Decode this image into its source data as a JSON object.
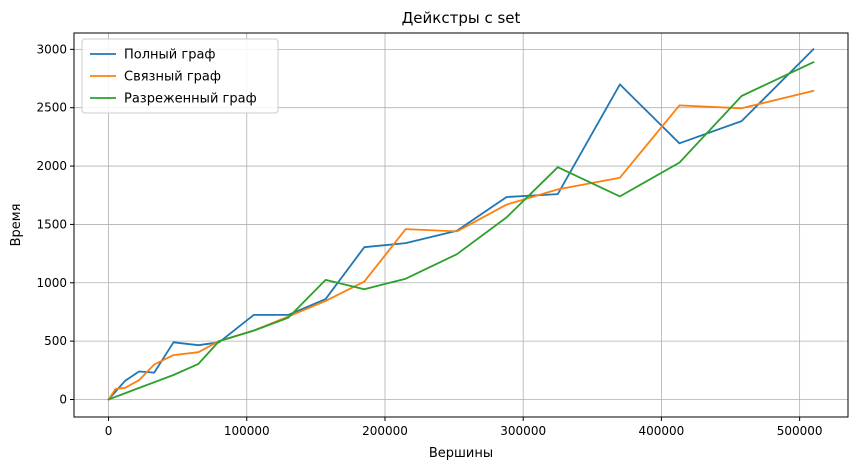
{
  "chart_data": {
    "type": "line",
    "title": "Дейкстры с set",
    "xlabel": "Вершины",
    "ylabel": "Время",
    "xlim": [
      -25000,
      535000
    ],
    "ylim": [
      -150,
      3140
    ],
    "xticks": [
      0,
      100000,
      200000,
      300000,
      400000,
      500000
    ],
    "yticks": [
      0,
      500,
      1000,
      1500,
      2000,
      2500,
      3000
    ],
    "grid": true,
    "legend_position": "top-left",
    "series": [
      {
        "name": "Полный граф",
        "color": "#1f77b4",
        "points": [
          [
            0,
            0
          ],
          [
            12000,
            160
          ],
          [
            22000,
            240
          ],
          [
            33000,
            230
          ],
          [
            47000,
            490
          ],
          [
            65000,
            465
          ],
          [
            80000,
            490
          ],
          [
            105000,
            725
          ],
          [
            130000,
            725
          ],
          [
            157000,
            860
          ],
          [
            185000,
            1305
          ],
          [
            215000,
            1340
          ],
          [
            252000,
            1445
          ],
          [
            288000,
            1735
          ],
          [
            325000,
            1760
          ],
          [
            370000,
            2700
          ],
          [
            413000,
            2195
          ],
          [
            458000,
            2385
          ],
          [
            510000,
            3000
          ]
        ]
      },
      {
        "name": "Связный граф",
        "color": "#ff7f0e",
        "points": [
          [
            0,
            0
          ],
          [
            5000,
            90
          ],
          [
            12000,
            100
          ],
          [
            22000,
            165
          ],
          [
            33000,
            300
          ],
          [
            47000,
            380
          ],
          [
            65000,
            405
          ],
          [
            80000,
            500
          ],
          [
            105000,
            590
          ],
          [
            130000,
            710
          ],
          [
            157000,
            845
          ],
          [
            185000,
            1010
          ],
          [
            215000,
            1460
          ],
          [
            252000,
            1440
          ],
          [
            288000,
            1670
          ],
          [
            325000,
            1800
          ],
          [
            370000,
            1900
          ],
          [
            413000,
            2520
          ],
          [
            458000,
            2495
          ],
          [
            510000,
            2645
          ]
        ]
      },
      {
        "name": "Разреженный граф",
        "color": "#2ca02c",
        "points": [
          [
            0,
            0
          ],
          [
            20000,
            90
          ],
          [
            47000,
            210
          ],
          [
            65000,
            305
          ],
          [
            80000,
            500
          ],
          [
            105000,
            590
          ],
          [
            130000,
            700
          ],
          [
            157000,
            1025
          ],
          [
            185000,
            945
          ],
          [
            215000,
            1035
          ],
          [
            252000,
            1245
          ],
          [
            288000,
            1560
          ],
          [
            325000,
            1990
          ],
          [
            370000,
            1740
          ],
          [
            413000,
            2030
          ],
          [
            458000,
            2600
          ],
          [
            510000,
            2890
          ]
        ]
      }
    ]
  }
}
